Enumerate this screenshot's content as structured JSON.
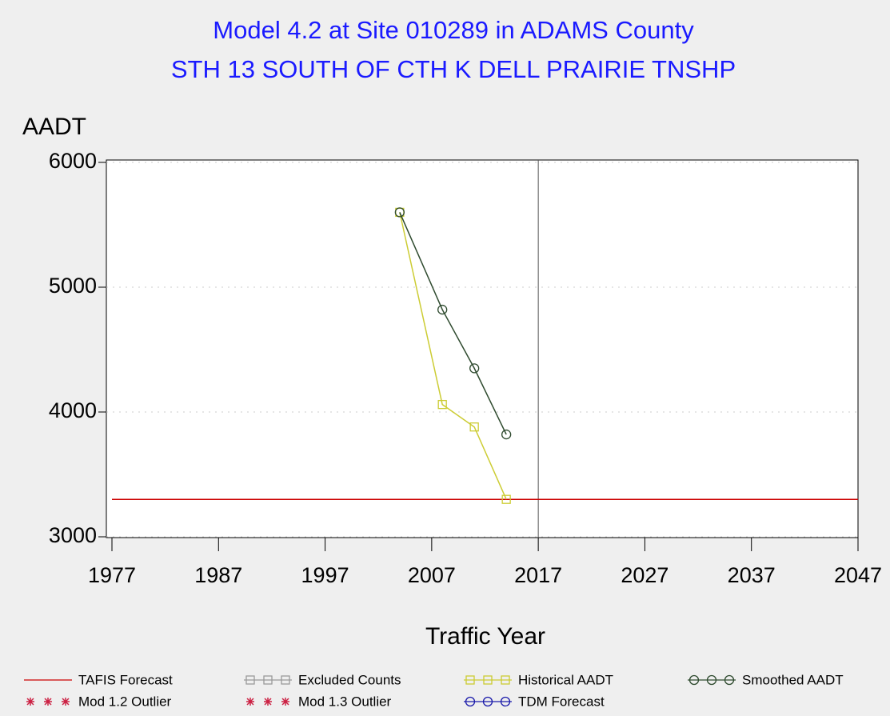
{
  "chart_data": {
    "type": "line",
    "title": "Model 4.2 at Site 010289 in ADAMS County",
    "subtitle": "STH 13 SOUTH OF CTH K  DELL PRAIRIE TNSHP",
    "x_label": "Traffic Year",
    "y_label": "AADT",
    "xlim": [
      1977,
      2047
    ],
    "xticks": [
      1977,
      1987,
      1997,
      2007,
      2017,
      2027,
      2037,
      2047
    ],
    "ylim": [
      3000,
      6000
    ],
    "yticks": [
      3000,
      4000,
      5000,
      6000
    ],
    "grid": true,
    "reference_x": 2017,
    "series": [
      {
        "name": "TAFIS Forecast",
        "color": "#cc0000",
        "marker": "none",
        "x": [
          1977,
          2047
        ],
        "values": [
          3300,
          3300
        ]
      },
      {
        "name": "Excluded Counts",
        "color": "#999999",
        "marker": "square",
        "x": [],
        "values": []
      },
      {
        "name": "Historical AADT",
        "color": "#cccc33",
        "marker": "square",
        "x": [
          2004,
          2008,
          2011,
          2014
        ],
        "values": [
          5600,
          4060,
          3880,
          3300
        ]
      },
      {
        "name": "Smoothed AADT",
        "color": "#2e4a2e",
        "marker": "circle",
        "x": [
          2004,
          2008,
          2011,
          2014
        ],
        "values": [
          5600,
          4820,
          4350,
          3820
        ]
      },
      {
        "name": "Mod 1.2 Outlier",
        "color": "#cc2244",
        "marker": "star",
        "x": [],
        "values": []
      },
      {
        "name": "Mod 1.3 Outlier",
        "color": "#cc2244",
        "marker": "star",
        "x": [],
        "values": []
      },
      {
        "name": "TDM Forecast",
        "color": "#1a1aaa",
        "marker": "circle",
        "x": [],
        "values": []
      }
    ]
  }
}
